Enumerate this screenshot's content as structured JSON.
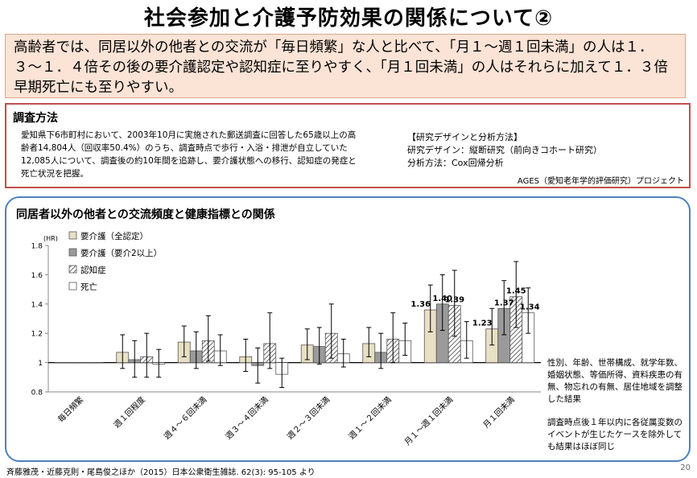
{
  "title": "社会参加と介護予防効果の関係について②",
  "summary": "高齢者では、同居以外の他者との交流が「毎日頻繁」な人と比べて、「月１〜週１回未満」の人は１．３〜１．４倍その後の要介護認定や認知症に至りやすく、「月１回未満」の人はそれらに加えて１．３倍早期死亡にも至りやすい。",
  "method": {
    "heading": "調査方法",
    "body": "愛知県下6市町村において、2003年10月に実施された郵送調査に回答した65歳以上の高齢者14,804人（回収率50.4%）のうち、調査時点で歩行・入浴・排泄が自立していた12,085人について、調査後の約10年間を追跡し、要介護状態への移行、認知症の発症と死亡状況を把握。",
    "design_heading": "【研究デザインと分析方法】",
    "design_line": "研究デザイン：縦断研究（前向きコホート研究）",
    "analysis_line": "分析方法：Cox回帰分析",
    "project": "AGES（愛知老年学的評価研究）プロジェクト"
  },
  "chart_panel": {
    "title": "同居者以外の他者との交流頻度と健康指標との関係",
    "adjust_note": "性別、年齢、世帯構成、就学年数、婚姻状態、等価所得、資料疾患の有無、物忘れの有無、居住地域を調整した結果",
    "exclude_note": "調査時点後１年以内に各従属変数のイベントが生じたケースを除外しても結果はほぼ同じ"
  },
  "chart_data": {
    "type": "bar",
    "ylabel": "(HR)",
    "ylim": [
      0.8,
      1.8
    ],
    "yticks": [
      "0.8",
      "1",
      "1.2",
      "1.4",
      "1.6",
      "1.8"
    ],
    "reference_line": 1,
    "categories": [
      "毎日頻繁",
      "週１回程度",
      "週４〜６回未満",
      "週３〜４回未満",
      "週２〜３回未満",
      "週１〜２回未満",
      "月１〜週１回未満",
      "月１回未満"
    ],
    "series": [
      {
        "name": "要介護（全認定）",
        "fill": "#e8e0c4",
        "pattern": "none",
        "values": [
          1.0,
          1.07,
          1.14,
          1.04,
          1.12,
          1.13,
          1.36,
          1.23
        ],
        "err_low": [
          1.0,
          0.96,
          1.04,
          0.94,
          1.02,
          1.04,
          1.21,
          1.12
        ],
        "err_high": [
          1.0,
          1.19,
          1.25,
          1.16,
          1.23,
          1.24,
          1.53,
          1.37
        ]
      },
      {
        "name": "要介護（要介2以上）",
        "fill": "#9a9a9a",
        "pattern": "none",
        "values": [
          1.0,
          1.02,
          1.08,
          0.98,
          1.11,
          1.07,
          1.4,
          1.37
        ],
        "err_low": [
          1.0,
          0.9,
          0.96,
          0.86,
          0.99,
          0.96,
          1.22,
          1.19
        ],
        "err_high": [
          1.0,
          1.15,
          1.21,
          1.1,
          1.24,
          1.2,
          1.6,
          1.56
        ]
      },
      {
        "name": "認知症",
        "fill": "#ffffff",
        "pattern": "hatch",
        "values": [
          1.0,
          1.04,
          1.15,
          1.13,
          1.2,
          1.16,
          1.39,
          1.45
        ],
        "err_low": [
          1.0,
          0.9,
          1.01,
          0.96,
          1.03,
          1.0,
          1.18,
          1.24
        ],
        "err_high": [
          1.0,
          1.2,
          1.32,
          1.34,
          1.4,
          1.34,
          1.63,
          1.69
        ]
      },
      {
        "name": "死亡",
        "fill": "#ffffff",
        "pattern": "none",
        "values": [
          1.0,
          0.99,
          1.08,
          0.92,
          1.06,
          1.15,
          1.15,
          1.34
        ],
        "err_low": [
          1.0,
          0.9,
          0.98,
          0.83,
          0.97,
          1.05,
          1.03,
          1.2
        ],
        "err_high": [
          1.0,
          1.09,
          1.19,
          1.03,
          1.16,
          1.27,
          1.28,
          1.51
        ]
      }
    ],
    "data_labels": [
      {
        "category": 6,
        "series": 0,
        "text": "1.36"
      },
      {
        "category": 6,
        "series": 1,
        "text": "1.40"
      },
      {
        "category": 6,
        "series": 2,
        "text": "1.39"
      },
      {
        "category": 7,
        "series": 0,
        "text": "1.23"
      },
      {
        "category": 7,
        "series": 1,
        "text": "1.37"
      },
      {
        "category": 7,
        "series": 2,
        "text": "1.45"
      },
      {
        "category": 7,
        "series": 3,
        "text": "1.34"
      }
    ]
  },
  "citation": "斉藤雅茂・近藤克則・尾島俊之ほか（2015）日本公衆衛生雑誌. 62(3): 95-105 より",
  "page_number": "20"
}
